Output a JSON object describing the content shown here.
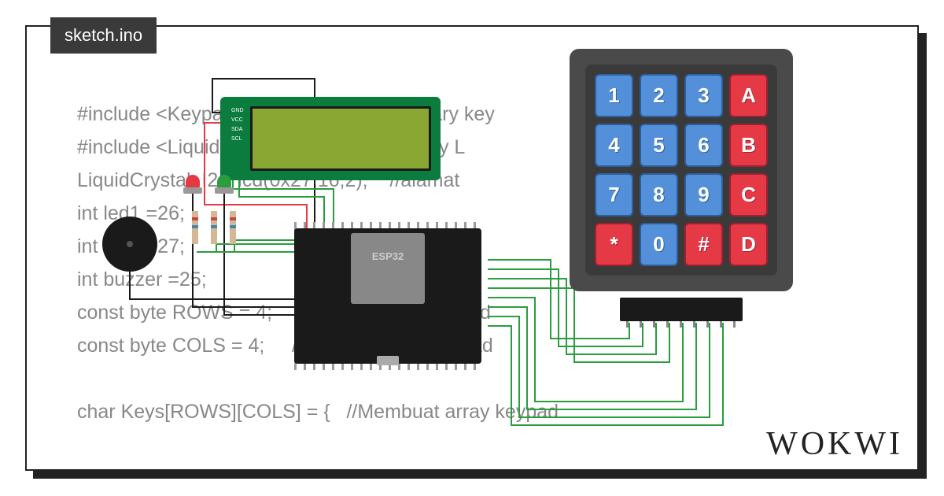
{
  "tab_label": "sketch.ino",
  "logo": "WOKWI",
  "code": "#include <Keypad.h>                       //Library key\n#include <LiquidCrystal_I2C.h>     //Library L\nLiquidCrystal_I2C lcd(0x27,16,2);    //alamat \nint led1 =26;\nint led2 =27;\nint buzzer =25;\nconst byte ROWS = 4;     //Jumlah baris keypad\nconst byte COLS = 4;     //Jumlah kolom keypad\n\nchar Keys[ROWS][COLS] = {   //Membuat array keypad",
  "keypad": {
    "keys": [
      {
        "label": "1",
        "red": false
      },
      {
        "label": "2",
        "red": false
      },
      {
        "label": "3",
        "red": false
      },
      {
        "label": "A",
        "red": true
      },
      {
        "label": "4",
        "red": false
      },
      {
        "label": "5",
        "red": false
      },
      {
        "label": "6",
        "red": false
      },
      {
        "label": "B",
        "red": true
      },
      {
        "label": "7",
        "red": false
      },
      {
        "label": "8",
        "red": false
      },
      {
        "label": "9",
        "red": false
      },
      {
        "label": "C",
        "red": true
      },
      {
        "label": "*",
        "red": true
      },
      {
        "label": "0",
        "red": false
      },
      {
        "label": "#",
        "red": true
      },
      {
        "label": "D",
        "red": true
      }
    ]
  },
  "lcd_labels": [
    "GND",
    "VCC",
    "SDA",
    "SCL"
  ],
  "esp_label": "ESP32",
  "wire_colors": {
    "green": "#2a9d3f",
    "black": "#1a1a1a",
    "red": "#e63946"
  }
}
